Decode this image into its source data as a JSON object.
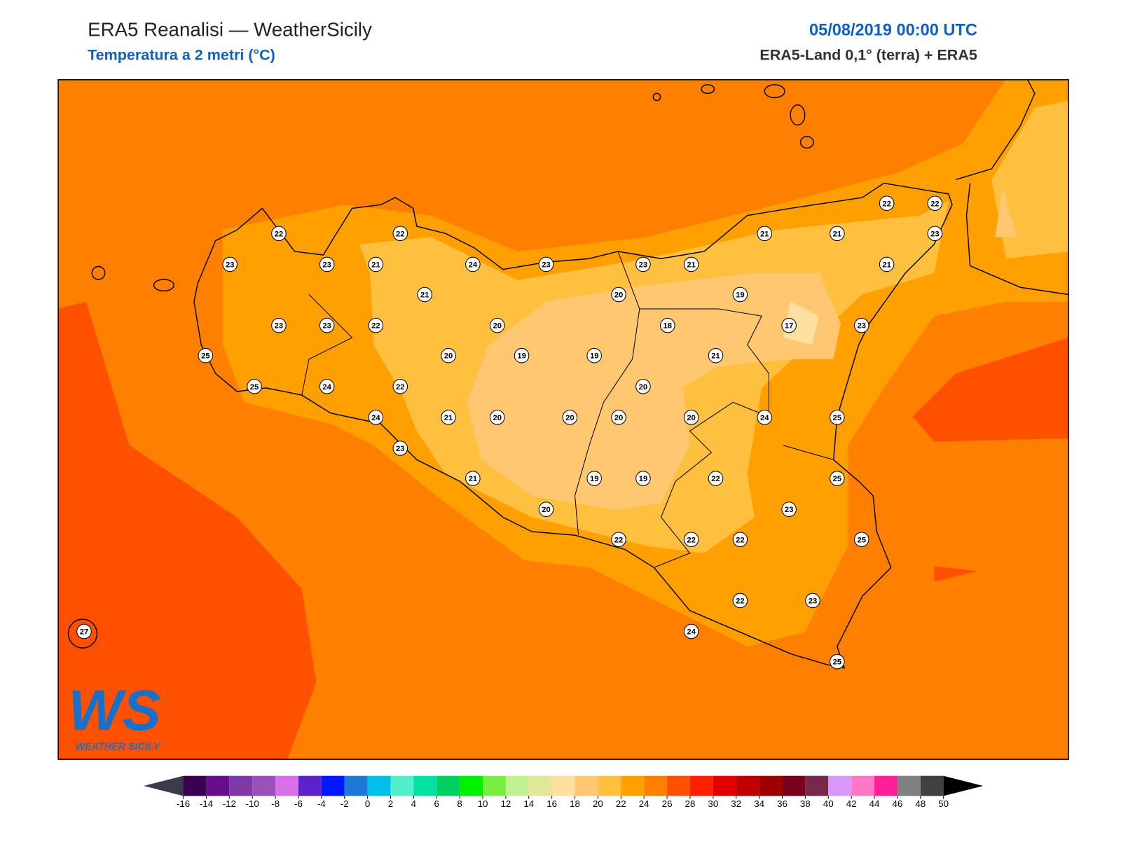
{
  "header": {
    "title": "ERA5 Reanalisi — WeatherSicily",
    "subtitle": "Temperatura a 2 metri (°C)",
    "datetime": "05/08/2019 00:00 UTC",
    "source": "ERA5-Land 0,1° (terra) + ERA5"
  },
  "stations": [
    22,
    22,
    22,
    22,
    23,
    23,
    21,
    24,
    23,
    23,
    21,
    21,
    21,
    23,
    21,
    21,
    20,
    19,
    23,
    23,
    22,
    20,
    18,
    17,
    23,
    25,
    20,
    19,
    19,
    21,
    25,
    24,
    22,
    20,
    24,
    21,
    20,
    20,
    20,
    20,
    24,
    25,
    23,
    21,
    19,
    19,
    22,
    25,
    23,
    20,
    22,
    22,
    22,
    25,
    22,
    23,
    24,
    25,
    27
  ],
  "colorbar": {
    "ticks": [
      -16,
      -14,
      -12,
      -10,
      -8,
      -6,
      -4,
      -2,
      0,
      2,
      4,
      6,
      8,
      10,
      12,
      14,
      16,
      18,
      20,
      22,
      24,
      26,
      28,
      30,
      32,
      34,
      36,
      38,
      40,
      42,
      44,
      46,
      48,
      50
    ],
    "colors": [
      "#3c0050",
      "#6a0d8a",
      "#7f3aa6",
      "#9a50b8",
      "#d970e8",
      "#5a22c8",
      "#0018ff",
      "#1e78d8",
      "#00c0e8",
      "#50f0c8",
      "#00e0a0",
      "#00d060",
      "#00f000",
      "#78ee40",
      "#c0f090",
      "#e0e898",
      "#ffe0a0",
      "#ffc870",
      "#ffc040",
      "#ffa000",
      "#ff8000",
      "#ff5000",
      "#ff2000",
      "#e00000",
      "#c00000",
      "#a00000",
      "#780018",
      "#7a2848",
      "#d898f8",
      "#ff78c8",
      "#ff2098",
      "#808080",
      "#404040"
    ],
    "under_color": "#3a3a4a",
    "over_color": "#000000"
  },
  "logo": {
    "mark": "WS",
    "caption": "WEATHER SICILY"
  }
}
